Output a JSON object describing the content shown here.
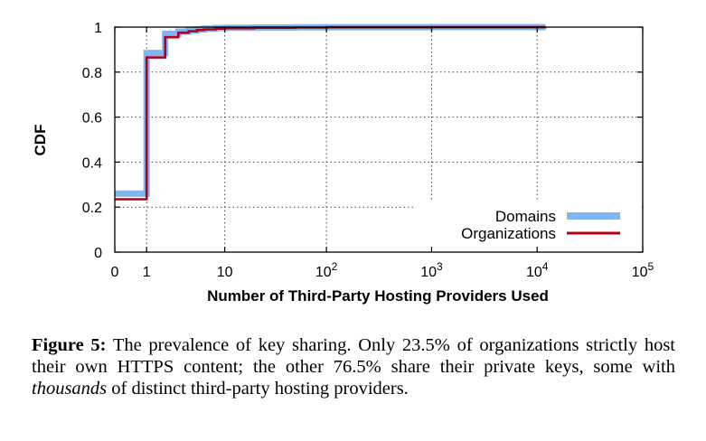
{
  "chart_data": {
    "type": "line",
    "xlabel": "Number of Third-Party Hosting Providers Used",
    "ylabel": "CDF",
    "x_scale": "log(1+x)",
    "xlim": [
      0,
      100000
    ],
    "ylim": [
      0,
      1
    ],
    "grid": true,
    "legend_position": "bottom-right",
    "x_ticks": [
      {
        "value": 0,
        "label": "0"
      },
      {
        "value": 1,
        "label": "1"
      },
      {
        "value": 10,
        "label": "10"
      },
      {
        "value": 100,
        "base": "10",
        "exp": "2"
      },
      {
        "value": 1000,
        "base": "10",
        "exp": "3"
      },
      {
        "value": 10000,
        "base": "10",
        "exp": "4"
      },
      {
        "value": 100000,
        "base": "10",
        "exp": "5"
      }
    ],
    "y_ticks": [
      {
        "value": 0,
        "label": "0"
      },
      {
        "value": 0.2,
        "label": "0.2"
      },
      {
        "value": 0.4,
        "label": "0.4"
      },
      {
        "value": 0.6,
        "label": "0.6"
      },
      {
        "value": 0.8,
        "label": "0.8"
      },
      {
        "value": 1,
        "label": "1"
      }
    ],
    "series": [
      {
        "name": "Domains",
        "color": "#7fb5f0",
        "x": [
          0,
          1,
          2,
          3,
          4,
          5,
          6,
          8,
          10,
          20,
          50,
          100,
          1000,
          12000
        ],
        "y": [
          0.26,
          0.885,
          0.97,
          0.98,
          0.985,
          0.99,
          0.993,
          0.996,
          0.997,
          0.998,
          0.999,
          0.9995,
          0.9999,
          1.0
        ]
      },
      {
        "name": "Organizations",
        "color": "#b30019",
        "x": [
          0,
          1,
          2,
          3,
          4,
          5,
          6,
          8,
          10,
          20,
          50,
          100,
          1000,
          12000
        ],
        "y": [
          0.235,
          0.865,
          0.955,
          0.975,
          0.982,
          0.987,
          0.99,
          0.993,
          0.995,
          0.997,
          0.998,
          0.999,
          0.9995,
          1.0
        ]
      }
    ]
  },
  "caption": {
    "label": "Figure 5:",
    "text_1": " The prevalence of key sharing. Only 23.5% of organizations strictly host their own HTTPS content; the other 76.5% share their private keys, some with ",
    "emphasis": "thousands",
    "text_2": " of distinct third-party hosting providers."
  }
}
